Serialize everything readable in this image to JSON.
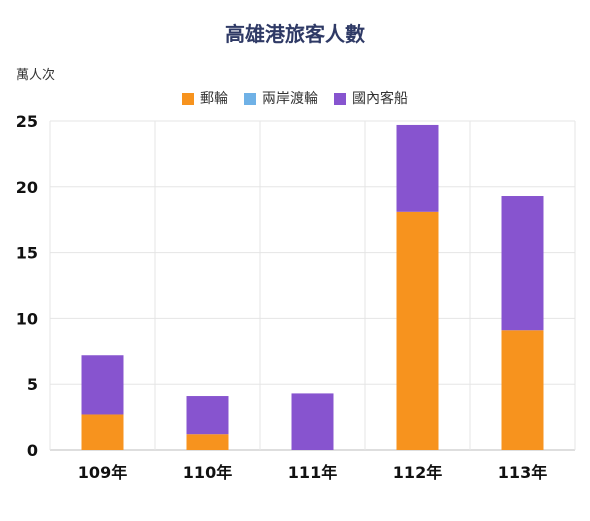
{
  "chart_data": {
    "type": "bar",
    "stacked": true,
    "title": "高雄港旅客人數",
    "ylabel": "萬人次",
    "xlabel": "",
    "categories": [
      "109年",
      "110年",
      "111年",
      "112年",
      "113年"
    ],
    "series": [
      {
        "name": "郵輪",
        "color": "#f7931e",
        "values": [
          2.7,
          1.2,
          0,
          18.1,
          9.1
        ]
      },
      {
        "name": "兩岸渡輪",
        "color": "#6fb1e6",
        "values": [
          0,
          0,
          0,
          0,
          0
        ]
      },
      {
        "name": "國內客船",
        "color": "#8754cf",
        "values": [
          4.5,
          2.9,
          4.3,
          6.6,
          10.2
        ]
      }
    ],
    "ylim": [
      0,
      25
    ],
    "yticks": [
      0,
      5,
      10,
      15,
      20,
      25
    ],
    "legend_position": "top-center",
    "grid": true
  }
}
